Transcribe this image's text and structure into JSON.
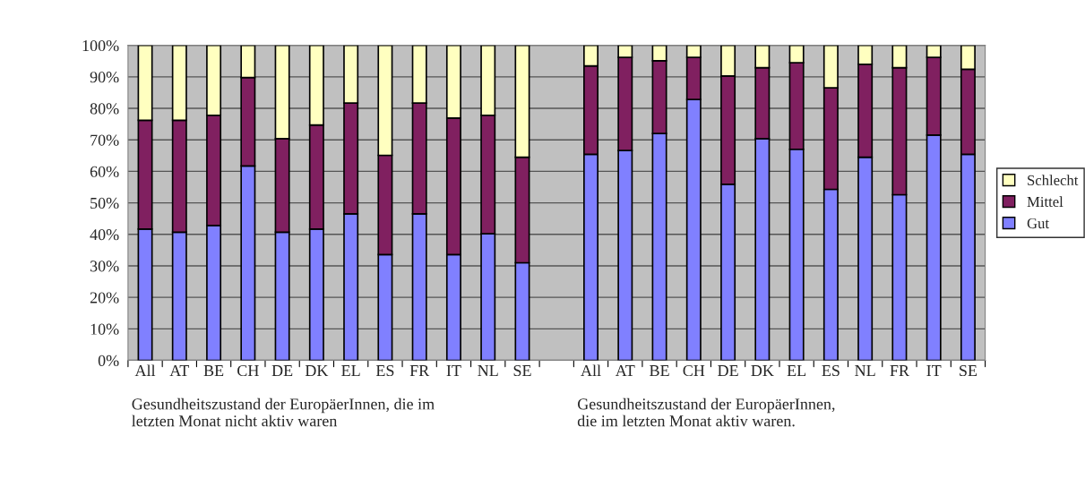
{
  "chart_data": {
    "type": "bar",
    "stacked": true,
    "categories": [
      "All",
      "AT",
      "BE",
      "CH",
      "DE",
      "DK",
      "EL",
      "ES",
      "FR",
      "IT",
      "NL",
      "SE",
      null,
      "All",
      "AT",
      "BE",
      "CH",
      "DE",
      "DK",
      "EL",
      "ES",
      "NL",
      "FR",
      "IT",
      "SE"
    ],
    "series": [
      {
        "name": "Gut",
        "color": "#8080ff",
        "values": [
          41.7,
          40.7,
          42.8,
          61.7,
          40.7,
          41.7,
          46.5,
          33.6,
          46.5,
          33.6,
          40.2,
          31.0,
          null,
          65.4,
          66.6,
          72.0,
          82.8,
          55.9,
          70.4,
          67.0,
          54.3,
          64.5,
          52.6,
          71.5,
          65.4
        ]
      },
      {
        "name": "Mittel",
        "color": "#802060",
        "values": [
          34.5,
          35.5,
          35.0,
          28.1,
          29.7,
          33.0,
          35.2,
          31.5,
          35.2,
          43.3,
          37.6,
          33.5,
          null,
          28.1,
          29.6,
          23.1,
          13.4,
          34.4,
          22.5,
          27.5,
          32.2,
          29.5,
          40.3,
          24.7,
          27.0
        ]
      },
      {
        "name": "Schlecht",
        "color": "#ffffc0",
        "values": [
          23.8,
          23.8,
          22.2,
          10.2,
          29.6,
          25.3,
          18.3,
          34.9,
          18.3,
          23.1,
          22.2,
          35.5,
          null,
          6.5,
          3.8,
          4.9,
          3.8,
          9.7,
          7.1,
          5.5,
          13.5,
          6.0,
          7.1,
          3.8,
          7.6
        ]
      }
    ],
    "ylim": [
      0,
      100
    ],
    "yticks": [
      {
        "value": 0,
        "label": "0%"
      },
      {
        "value": 10,
        "label": "10%"
      },
      {
        "value": 20,
        "label": "20%"
      },
      {
        "value": 30,
        "label": "30%"
      },
      {
        "value": 40,
        "label": "40%"
      },
      {
        "value": 50,
        "label": "50%"
      },
      {
        "value": 60,
        "label": "60%"
      },
      {
        "value": 70,
        "label": "70%"
      },
      {
        "value": 80,
        "label": "80%"
      },
      {
        "value": 90,
        "label": "90%"
      },
      {
        "value": 100,
        "label": "100%"
      }
    ],
    "grid": "y",
    "legend": "right",
    "annotations": [
      "Gesundheitszustand der EuropäerInnen, die im\nletzten Monat nicht aktiv waren",
      "Gesundheitszustand der EuropäerInnen,\ndie im letzten Monat aktiv waren."
    ]
  }
}
